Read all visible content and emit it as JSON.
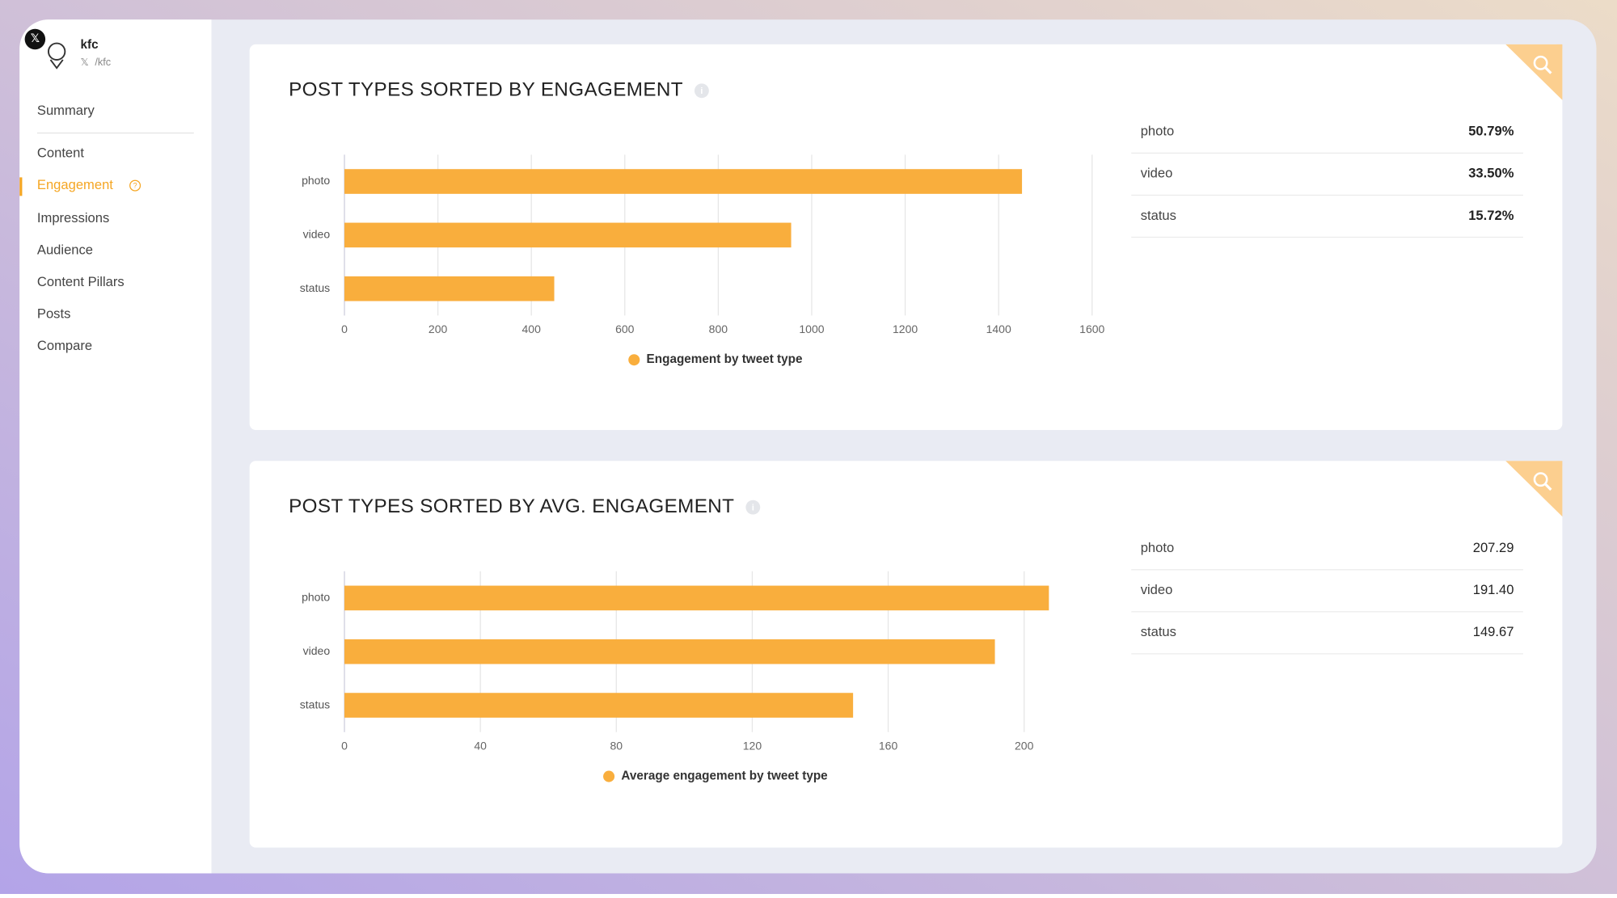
{
  "account": {
    "name": "kfc",
    "handle": "/kfc"
  },
  "nav": [
    "Summary",
    "Content",
    "Engagement",
    "Impressions",
    "Audience",
    "Content Pillars",
    "Posts",
    "Compare"
  ],
  "chart_data": [
    {
      "type": "hbar",
      "title": "POST TYPES SORTED BY ENGAGEMENT",
      "categories": [
        "photo",
        "video",
        "status"
      ],
      "series": [
        {
          "name": "Engagement by tweet type",
          "color": "#f9ae3d",
          "values": [
            1450,
            956,
            449
          ]
        }
      ],
      "xlim": [
        0,
        1600
      ],
      "xticks": [
        0,
        200,
        400,
        600,
        800,
        1000,
        1200,
        1400,
        1600
      ],
      "grid": true
    },
    {
      "type": "hbar",
      "title": "POST TYPES SORTED BY AVG. ENGAGEMENT",
      "categories": [
        "photo",
        "video",
        "status"
      ],
      "series": [
        {
          "name": "Average engagement by tweet type",
          "color": "#f9ae3d",
          "values": [
            207.29,
            191.4,
            149.67
          ],
          "value_labels": [
            "207.29",
            "191.40",
            "149.67"
          ]
        }
      ],
      "xlim": [
        0,
        220
      ],
      "xticks": [
        0,
        40,
        80,
        120,
        160,
        200
      ],
      "grid": true
    }
  ],
  "tables": [
    [
      "50.79%",
      "33.50%",
      "15.72%"
    ]
  ]
}
